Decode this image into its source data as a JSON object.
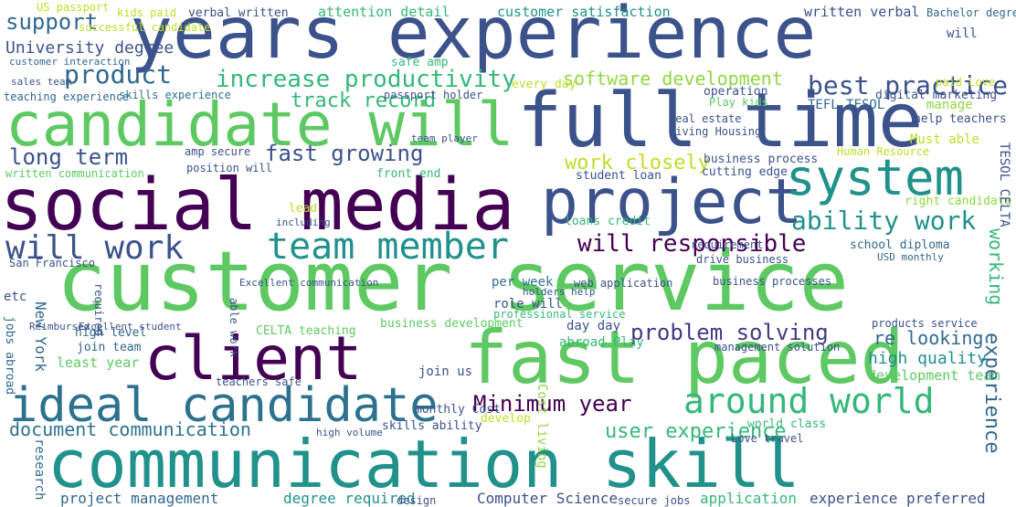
{
  "words": [
    {
      "text": "years experience",
      "color": "#3b528b"
    },
    {
      "text": "candidate will",
      "color": "#5ec962"
    },
    {
      "text": "full time",
      "color": "#3b528b"
    },
    {
      "text": "social media",
      "color": "#440154"
    },
    {
      "text": "project",
      "color": "#3b528b"
    },
    {
      "text": "system",
      "color": "#21918c"
    },
    {
      "text": "customer service",
      "color": "#5ec962"
    },
    {
      "text": "client",
      "color": "#440154"
    },
    {
      "text": "fast paced",
      "color": "#5ec962"
    },
    {
      "text": "ideal candidate",
      "color": "#2c728e"
    },
    {
      "text": "communication skill",
      "color": "#21918c"
    },
    {
      "text": "team member",
      "color": "#21918c"
    },
    {
      "text": "will work",
      "color": "#3b528b"
    },
    {
      "text": "around world",
      "color": "#35b779"
    },
    {
      "text": "increase productivity",
      "color": "#35b779"
    },
    {
      "text": "product",
      "color": "#31688e"
    },
    {
      "text": "best practice",
      "color": "#3b528b"
    },
    {
      "text": "ability work",
      "color": "#21918c"
    },
    {
      "text": "will responsible",
      "color": "#440154"
    },
    {
      "text": "problem solving",
      "color": "#443983"
    },
    {
      "text": "Minimum year",
      "color": "#440154"
    },
    {
      "text": "support",
      "color": "#31688e"
    },
    {
      "text": "University degree",
      "color": "#3b528b"
    },
    {
      "text": "track record",
      "color": "#35b779"
    },
    {
      "text": "software development",
      "color": "#90d743"
    },
    {
      "text": "long term",
      "color": "#3b528b"
    },
    {
      "text": "fast growing",
      "color": "#3b528b"
    },
    {
      "text": "work closely",
      "color": "#bddf26"
    },
    {
      "text": "document communication",
      "color": "#2c728e"
    },
    {
      "text": "user experience",
      "color": "#35b779"
    },
    {
      "text": "project management",
      "color": "#31688e"
    },
    {
      "text": "degree required",
      "color": "#21918c"
    },
    {
      "text": "Computer Science",
      "color": "#3b528b"
    },
    {
      "text": "application",
      "color": "#35b779"
    },
    {
      "text": "experience preferred",
      "color": "#3b528b"
    },
    {
      "text": "high quality",
      "color": "#21918c"
    },
    {
      "text": "development team",
      "color": "#5ec962"
    },
    {
      "text": "re looking",
      "color": "#31688e"
    },
    {
      "text": "attention detail",
      "color": "#35b779"
    },
    {
      "text": "customer satisfaction",
      "color": "#21918c"
    },
    {
      "text": "written verbal",
      "color": "#3b528b"
    },
    {
      "text": "Bachelor degree",
      "color": "#31688e"
    },
    {
      "text": "kids paid",
      "color": "#bddf26"
    },
    {
      "text": "verbal written",
      "color": "#3b528b"
    },
    {
      "text": "US passport",
      "color": "#bddf26"
    },
    {
      "text": "teaching experience",
      "color": "#31688e"
    },
    {
      "text": "skills experience",
      "color": "#2c728e"
    },
    {
      "text": "passport holder",
      "color": "#3b528b"
    },
    {
      "text": "safe amp",
      "color": "#35b779"
    },
    {
      "text": "every day",
      "color": "#bddf26"
    },
    {
      "text": "operation",
      "color": "#3b528b"
    },
    {
      "text": "Play kids",
      "color": "#5ec962"
    },
    {
      "text": "TEFL TESOL",
      "color": "#31688e"
    },
    {
      "text": "manage",
      "color": "#90d743"
    },
    {
      "text": "help teachers",
      "color": "#3b528b"
    },
    {
      "text": "Must able",
      "color": "#bddf26"
    },
    {
      "text": "Human Resource",
      "color": "#bddf26"
    },
    {
      "text": "right candidate",
      "color": "#90d743"
    },
    {
      "text": "school diploma",
      "color": "#31688e"
    },
    {
      "text": "USD monthly",
      "color": "#31688e"
    },
    {
      "text": "cutting edge",
      "color": "#3b528b"
    },
    {
      "text": "business process",
      "color": "#3b528b"
    },
    {
      "text": "student loan",
      "color": "#3b528b"
    },
    {
      "text": "loans credit",
      "color": "#35b779"
    },
    {
      "text": "drive business",
      "color": "#3b528b"
    },
    {
      "text": "requirement",
      "color": "#3b528b"
    },
    {
      "text": "business processes",
      "color": "#3b528b"
    },
    {
      "text": "web application",
      "color": "#3b528b"
    },
    {
      "text": "holders help",
      "color": "#3b528b"
    },
    {
      "text": "per week",
      "color": "#2c728e"
    },
    {
      "text": "role will",
      "color": "#3b528b"
    },
    {
      "text": "professional service",
      "color": "#35b779"
    },
    {
      "text": "day day",
      "color": "#3b528b"
    },
    {
      "text": "abroad Play",
      "color": "#35b779"
    },
    {
      "text": "business development",
      "color": "#5ec962"
    },
    {
      "text": "join team",
      "color": "#31688e"
    },
    {
      "text": "high level",
      "color": "#31688e"
    },
    {
      "text": "least year",
      "color": "#5ec962"
    },
    {
      "text": "join us",
      "color": "#3b528b"
    },
    {
      "text": "teachers safe",
      "color": "#3b528b"
    },
    {
      "text": "Excellent communication",
      "color": "#3b528b"
    },
    {
      "text": "lead",
      "color": "#bddf26"
    },
    {
      "text": "etc",
      "color": "#3b528b"
    },
    {
      "text": "New York",
      "color": "#31688e"
    },
    {
      "text": "position will",
      "color": "#3b528b"
    },
    {
      "text": "amp secure",
      "color": "#3b528b"
    },
    {
      "text": "front end",
      "color": "#35b779"
    },
    {
      "text": "written communication",
      "color": "#5ec962"
    },
    {
      "text": "sales team",
      "color": "#3b528b"
    },
    {
      "text": "successful candidate",
      "color": "#bddf26"
    },
    {
      "text": "customer interaction",
      "color": "#31688e"
    },
    {
      "text": "real estate",
      "color": "#3b528b"
    },
    {
      "text": "living Housing",
      "color": "#3b528b"
    },
    {
      "text": "digital marketing",
      "color": "#3b528b"
    },
    {
      "text": "paid Love",
      "color": "#bddf26"
    },
    {
      "text": "products service",
      "color": "#3b528b"
    },
    {
      "text": "management solution",
      "color": "#3b528b"
    },
    {
      "text": "CELTA teaching",
      "color": "#5ec962"
    },
    {
      "text": "San Francisco",
      "color": "#3b528b"
    },
    {
      "text": "jobs abroad",
      "color": "#31688e"
    },
    {
      "text": "research",
      "color": "#31688e"
    },
    {
      "text": "monthly Cost",
      "color": "#3b528b"
    },
    {
      "text": "skills ability",
      "color": "#3b528b"
    },
    {
      "text": "develop",
      "color": "#bddf26"
    },
    {
      "text": "secure jobs",
      "color": "#3b528b"
    },
    {
      "text": "design",
      "color": "#3b528b"
    },
    {
      "text": "world class",
      "color": "#35b779"
    },
    {
      "text": "Love travel",
      "color": "#3b528b"
    },
    {
      "text": "experience",
      "color": "#31688e"
    },
    {
      "text": "working",
      "color": "#35b779"
    },
    {
      "text": "TESOL CELTA",
      "color": "#3b528b"
    },
    {
      "text": "Cost living",
      "color": "#90d743"
    },
    {
      "text": "will",
      "color": "#3b528b"
    },
    {
      "text": "high volume",
      "color": "#3b528b"
    },
    {
      "text": "team player",
      "color": "#3b528b"
    },
    {
      "text": "Reimbursed",
      "color": "#3b528b"
    },
    {
      "text": "Excellent student",
      "color": "#3b528b"
    },
    {
      "text": "able work",
      "color": "#3b528b"
    },
    {
      "text": "including",
      "color": "#3b528b"
    },
    {
      "text": "required",
      "color": "#3b528b"
    }
  ]
}
